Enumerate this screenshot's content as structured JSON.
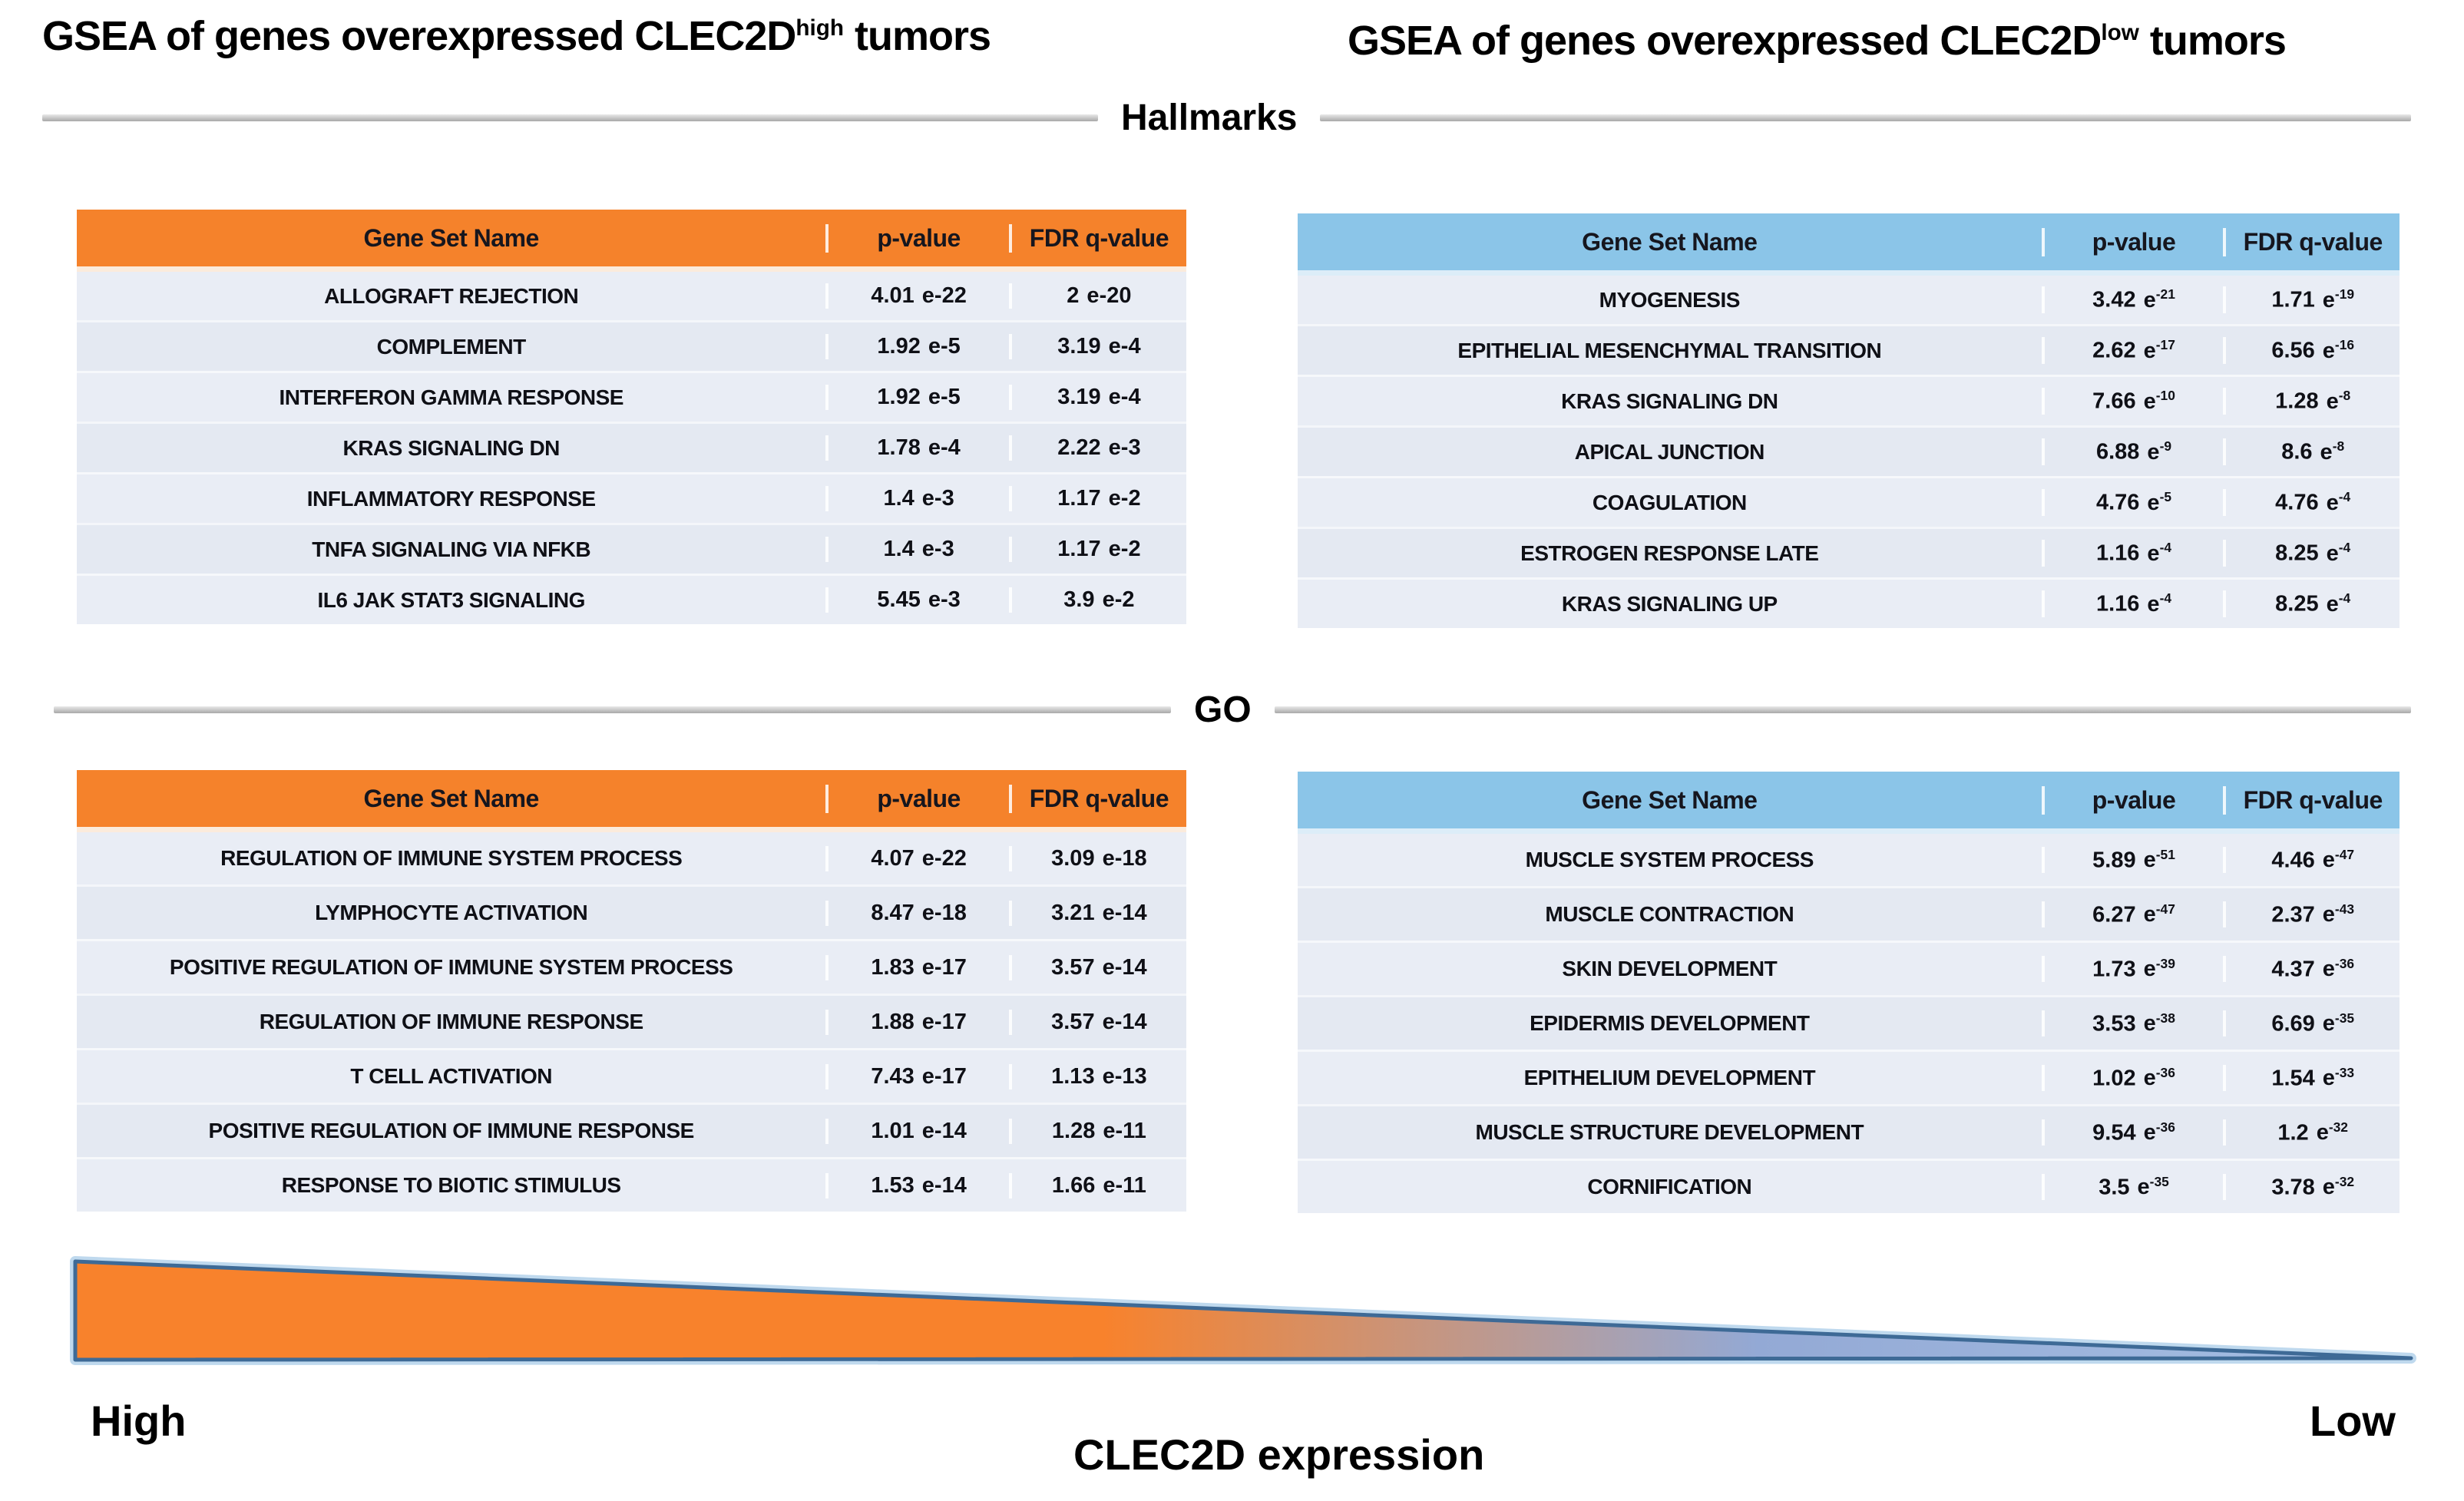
{
  "titles": {
    "left": {
      "prefix": "GSEA of genes overexpressed CLEC2D",
      "sup": "high",
      "suffix": " tumors"
    },
    "right": {
      "prefix": "GSEA of genes overexpressed CLEC2D",
      "sup": "low",
      "suffix": " tumors"
    }
  },
  "sections": {
    "hallmarks": "Hallmarks",
    "go": "GO"
  },
  "colors": {
    "orange": "#F5822B",
    "orange_strip": "#FBEBDC",
    "blue": "#8BC5E8",
    "blue_strip": "#DCEDF8",
    "row_bg": "#E9EDF5",
    "triangle_orange": "#F8822C",
    "triangle_blue": "#A6C0E4",
    "triangle_edge": "#3E6A96",
    "triangle_halo": "#BFD9EE"
  },
  "tables": {
    "hallmarks_high": {
      "accent": "orange",
      "exponent_style": "inline",
      "exp_prefix": "e",
      "columns": [
        "Gene Set Name",
        "p-value",
        "FDR q-value"
      ],
      "rows": [
        {
          "name": "ALLOGRAFT REJECTION",
          "p_coef": "4.01",
          "p_exp": "-22",
          "q_coef": "2",
          "q_exp": "-20"
        },
        {
          "name": "COMPLEMENT",
          "p_coef": "1.92",
          "p_exp": "-5",
          "q_coef": "3.19",
          "q_exp": "-4"
        },
        {
          "name": "INTERFERON GAMMA RESPONSE",
          "p_coef": "1.92",
          "p_exp": "-5",
          "q_coef": "3.19",
          "q_exp": "-4"
        },
        {
          "name": "KRAS SIGNALING DN",
          "p_coef": "1.78",
          "p_exp": "-4",
          "q_coef": "2.22",
          "q_exp": "-3"
        },
        {
          "name": "INFLAMMATORY RESPONSE",
          "p_coef": "1.4",
          "p_exp": "-3",
          "q_coef": "1.17",
          "q_exp": "-2"
        },
        {
          "name": "TNFA SIGNALING VIA NFKB",
          "p_coef": "1.4",
          "p_exp": "-3",
          "q_coef": "1.17",
          "q_exp": "-2"
        },
        {
          "name": "IL6 JAK STAT3 SIGNALING",
          "p_coef": "5.45",
          "p_exp": "-3",
          "q_coef": "3.9",
          "q_exp": "-2"
        }
      ]
    },
    "hallmarks_low": {
      "accent": "blue",
      "exponent_style": "superscript",
      "exp_prefix": "e",
      "columns": [
        "Gene Set Name",
        "p-value",
        "FDR q-value"
      ],
      "rows": [
        {
          "name": "MYOGENESIS",
          "p_coef": "3.42",
          "p_exp": "-21",
          "q_coef": "1.71",
          "q_exp": "-19"
        },
        {
          "name": "EPITHELIAL MESENCHYMAL TRANSITION",
          "p_coef": "2.62",
          "p_exp": "-17",
          "q_coef": "6.56",
          "q_exp": "-16"
        },
        {
          "name": "KRAS SIGNALING DN",
          "p_coef": "7.66",
          "p_exp": "-10",
          "q_coef": "1.28",
          "q_exp": "-8"
        },
        {
          "name": "APICAL JUNCTION",
          "p_coef": "6.88",
          "p_exp": "-9",
          "q_coef": "8.6",
          "q_exp": "-8"
        },
        {
          "name": "COAGULATION",
          "p_coef": "4.76",
          "p_exp": "-5",
          "q_coef": "4.76",
          "q_exp": "-4"
        },
        {
          "name": "ESTROGEN RESPONSE LATE",
          "p_coef": "1.16",
          "p_exp": "-4",
          "q_coef": "8.25",
          "q_exp": "-4"
        },
        {
          "name": "KRAS SIGNALING UP",
          "p_coef": "1.16",
          "p_exp": "-4",
          "q_coef": "8.25",
          "q_exp": "-4"
        }
      ]
    },
    "go_high": {
      "accent": "orange",
      "exponent_style": "inline",
      "exp_prefix": "e",
      "columns": [
        "Gene Set Name",
        "p-value",
        "FDR q-value"
      ],
      "rows": [
        {
          "name": "REGULATION OF IMMUNE SYSTEM PROCESS",
          "p_coef": "4.07",
          "p_exp": "-22",
          "q_coef": "3.09",
          "q_exp": "-18"
        },
        {
          "name": "LYMPHOCYTE ACTIVATION",
          "p_coef": "8.47",
          "p_exp": "-18",
          "q_coef": "3.21",
          "q_exp": "-14"
        },
        {
          "name": "POSITIVE REGULATION OF IMMUNE SYSTEM PROCESS",
          "p_coef": "1.83",
          "p_exp": "-17",
          "q_coef": "3.57",
          "q_exp": "-14"
        },
        {
          "name": "REGULATION OF IMMUNE RESPONSE",
          "p_coef": "1.88",
          "p_exp": "-17",
          "q_coef": "3.57",
          "q_exp": "-14"
        },
        {
          "name": "T CELL ACTIVATION",
          "p_coef": "7.43",
          "p_exp": "-17",
          "q_coef": "1.13",
          "q_exp": "-13"
        },
        {
          "name": "POSITIVE REGULATION OF IMMUNE RESPONSE",
          "p_coef": "1.01",
          "p_exp": "-14",
          "q_coef": "1.28",
          "q_exp": "-11"
        },
        {
          "name": "RESPONSE TO BIOTIC STIMULUS",
          "p_coef": "1.53",
          "p_exp": "-14",
          "q_coef": "1.66",
          "q_exp": "-11"
        }
      ]
    },
    "go_low": {
      "accent": "blue",
      "exponent_style": "superscript",
      "exp_prefix": "e",
      "columns": [
        "Gene Set Name",
        "p-value",
        "FDR q-value"
      ],
      "rows": [
        {
          "name": "MUSCLE SYSTEM PROCESS",
          "p_coef": "5.89",
          "p_exp": "-51",
          "q_coef": "4.46",
          "q_exp": "-47"
        },
        {
          "name": "MUSCLE CONTRACTION",
          "p_coef": "6.27",
          "p_exp": "-47",
          "q_coef": "2.37",
          "q_exp": "-43"
        },
        {
          "name": "SKIN DEVELOPMENT",
          "p_coef": "1.73",
          "p_exp": "-39",
          "q_coef": "4.37",
          "q_exp": "-36"
        },
        {
          "name": "EPIDERMIS DEVELOPMENT",
          "p_coef": "3.53",
          "p_exp": "-38",
          "q_coef": "6.69",
          "q_exp": "-35"
        },
        {
          "name": "EPITHELIUM DEVELOPMENT",
          "p_coef": "1.02",
          "p_exp": "-36",
          "q_coef": "1.54",
          "q_exp": "-33"
        },
        {
          "name": "MUSCLE STRUCTURE DEVELOPMENT",
          "p_coef": "9.54",
          "p_exp": "-36",
          "q_coef": "1.2",
          "q_exp": "-32"
        },
        {
          "name": "CORNIFICATION",
          "p_coef": "3.5",
          "p_exp": "-35",
          "q_coef": "3.78",
          "q_exp": "-32"
        }
      ]
    }
  },
  "gradient": {
    "left_label": "High",
    "right_label": "Low",
    "caption": "CLEC2D expression"
  }
}
